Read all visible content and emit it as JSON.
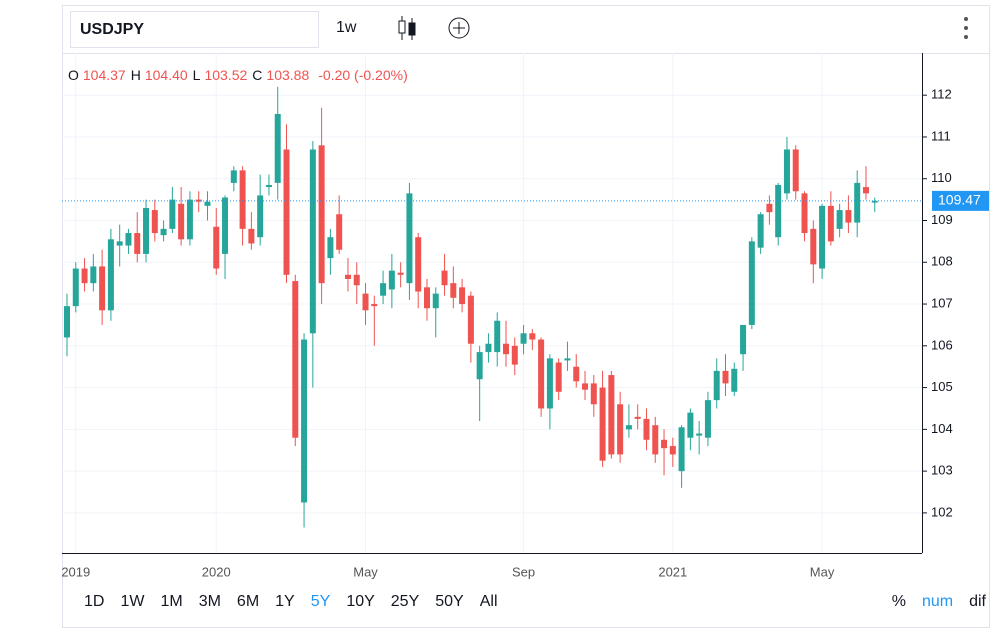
{
  "toolbar": {
    "symbol": "USDJPY",
    "interval": "1w"
  },
  "legend": [
    {
      "key": "O",
      "value": "104.37"
    },
    {
      "key": "H",
      "value": "104.40"
    },
    {
      "key": "L",
      "value": "103.52"
    },
    {
      "key": "C",
      "value": "103.88"
    }
  ],
  "legend_change": "-0.20 (-0.20%)",
  "ranges": [
    {
      "label": "1D",
      "selected": false
    },
    {
      "label": "1W",
      "selected": false
    },
    {
      "label": "1M",
      "selected": false
    },
    {
      "label": "3M",
      "selected": false
    },
    {
      "label": "6M",
      "selected": false
    },
    {
      "label": "1Y",
      "selected": false
    },
    {
      "label": "5Y",
      "selected": true
    },
    {
      "label": "10Y",
      "selected": false
    },
    {
      "label": "25Y",
      "selected": false
    },
    {
      "label": "50Y",
      "selected": false
    },
    {
      "label": "All",
      "selected": false
    }
  ],
  "scale_modes": [
    {
      "label": "%",
      "selected": false
    },
    {
      "label": "num",
      "selected": true
    },
    {
      "label": "dif",
      "selected": false
    }
  ],
  "chart_data": {
    "type": "candlestick",
    "up_color": "#26a69a",
    "down_color": "#ef5350",
    "grid": true,
    "categories": [
      null,
      "2019",
      null,
      null,
      null,
      null,
      null,
      null,
      null,
      null,
      null,
      null,
      null,
      null,
      null,
      null,
      null,
      "2020",
      null,
      null,
      null,
      null,
      null,
      null,
      null,
      null,
      null,
      null,
      null,
      null,
      null,
      null,
      null,
      null,
      "May",
      null,
      null,
      null,
      null,
      null,
      null,
      null,
      null,
      null,
      null,
      null,
      null,
      null,
      null,
      null,
      null,
      null,
      "Sep",
      null,
      null,
      null,
      null,
      null,
      null,
      null,
      null,
      null,
      null,
      null,
      null,
      null,
      null,
      null,
      null,
      "2021",
      null,
      null,
      null,
      null,
      null,
      null,
      null,
      null,
      null,
      null,
      null,
      null,
      null,
      null,
      null,
      null,
      "May",
      null,
      null,
      null,
      null,
      null,
      null
    ],
    "open": [
      106.2,
      106.95,
      107.85,
      107.5,
      107.9,
      106.85,
      108.4,
      108.4,
      108.7,
      108.2,
      109.25,
      108.65,
      108.8,
      109.4,
      108.55,
      109.5,
      109.35,
      108.85,
      108.2,
      109.9,
      110.2,
      108.8,
      108.6,
      109.8,
      109.9,
      110.7,
      107.55,
      102.25,
      106.3,
      110.8,
      108.1,
      109.15,
      107.7,
      107.7,
      107.25,
      107.0,
      107.2,
      107.35,
      107.75,
      107.5,
      108.6,
      107.4,
      106.9,
      107.8,
      107.5,
      107.4,
      107.2,
      105.2,
      105.85,
      105.85,
      106.05,
      106.0,
      106.05,
      106.3,
      106.15,
      104.5,
      105.6,
      105.65,
      105.5,
      105.1,
      105.1,
      105.0,
      105.3,
      104.6,
      104.0,
      104.3,
      104.25,
      104.1,
      103.75,
      103.6,
      103.0,
      103.8,
      103.85,
      103.8,
      104.7,
      105.4,
      104.9,
      105.8,
      106.5,
      108.35,
      109.4,
      108.6,
      109.65,
      110.7,
      109.65,
      108.8,
      107.85,
      109.35,
      108.8,
      109.25,
      108.95,
      109.8,
      109.43
    ],
    "high": [
      107.25,
      108.0,
      108.1,
      108.2,
      108.3,
      108.8,
      108.9,
      108.8,
      109.2,
      109.5,
      109.5,
      109.0,
      109.8,
      109.8,
      109.7,
      109.7,
      109.7,
      109.3,
      109.6,
      110.3,
      110.3,
      109.2,
      110.1,
      110.1,
      112.2,
      111.3,
      107.7,
      106.3,
      110.9,
      111.7,
      108.8,
      109.6,
      108.1,
      108.0,
      107.5,
      107.2,
      107.8,
      108.2,
      108.0,
      109.9,
      108.7,
      107.6,
      107.4,
      108.2,
      107.9,
      107.6,
      107.3,
      106.0,
      106.3,
      106.8,
      106.6,
      106.2,
      106.5,
      106.4,
      106.2,
      105.8,
      105.7,
      106.1,
      105.8,
      105.4,
      105.3,
      105.4,
      105.4,
      104.9,
      104.6,
      104.6,
      104.5,
      104.3,
      104.0,
      103.8,
      104.1,
      104.5,
      104.2,
      104.9,
      105.7,
      105.8,
      105.6,
      106.5,
      108.6,
      109.2,
      109.6,
      109.9,
      111.0,
      110.8,
      109.7,
      109.0,
      109.4,
      109.7,
      109.4,
      109.6,
      110.2,
      110.3,
      109.55
    ],
    "low": [
      105.75,
      106.8,
      107.3,
      107.3,
      106.5,
      106.6,
      107.9,
      108.2,
      108.0,
      108.0,
      108.5,
      108.5,
      108.7,
      108.4,
      108.4,
      109.2,
      109.0,
      107.7,
      107.6,
      109.7,
      108.4,
      108.3,
      108.4,
      109.6,
      109.5,
      107.5,
      103.6,
      101.65,
      105.0,
      107.0,
      107.7,
      108.2,
      107.3,
      107.0,
      106.5,
      106.0,
      107.0,
      106.9,
      107.4,
      107.1,
      106.9,
      106.6,
      106.2,
      107.2,
      106.9,
      106.8,
      105.6,
      104.2,
      105.6,
      105.5,
      105.5,
      105.3,
      105.8,
      105.9,
      104.3,
      104.0,
      104.7,
      105.4,
      105.0,
      104.7,
      104.3,
      103.1,
      103.3,
      103.2,
      103.8,
      104.0,
      103.5,
      103.2,
      102.9,
      103.1,
      102.6,
      103.5,
      103.4,
      103.6,
      104.5,
      104.8,
      104.8,
      105.4,
      106.4,
      108.2,
      108.9,
      108.4,
      109.5,
      109.5,
      108.5,
      107.5,
      107.6,
      108.4,
      108.6,
      108.7,
      108.6,
      109.5,
      109.2
    ],
    "close": [
      106.95,
      107.85,
      107.5,
      107.9,
      106.85,
      108.55,
      108.5,
      108.7,
      108.2,
      109.3,
      108.7,
      108.8,
      109.5,
      108.55,
      109.5,
      109.45,
      109.45,
      107.85,
      109.55,
      110.2,
      108.8,
      108.45,
      109.6,
      109.85,
      111.55,
      107.7,
      103.8,
      106.15,
      110.7,
      107.5,
      108.6,
      108.3,
      107.6,
      107.45,
      106.85,
      106.95,
      107.5,
      107.8,
      107.7,
      109.65,
      107.3,
      106.9,
      107.25,
      107.45,
      107.15,
      107.0,
      106.05,
      105.85,
      106.05,
      106.6,
      105.8,
      105.55,
      106.3,
      106.15,
      104.5,
      105.7,
      104.9,
      105.7,
      105.15,
      104.95,
      104.6,
      103.25,
      103.4,
      103.4,
      104.1,
      104.25,
      103.75,
      103.4,
      103.55,
      103.4,
      104.05,
      104.4,
      103.9,
      104.7,
      105.4,
      105.1,
      105.45,
      106.5,
      108.5,
      109.15,
      109.2,
      109.85,
      110.7,
      109.7,
      108.7,
      107.95,
      109.35,
      108.5,
      109.25,
      108.95,
      109.9,
      109.65,
      109.47
    ],
    "ylim": [
      101.04,
      113.01
    ],
    "yticks": [
      102,
      103,
      104,
      105,
      106,
      107,
      108,
      109,
      110,
      111,
      112
    ],
    "last_price": 109.47,
    "last_price_color": "#2196f3"
  }
}
